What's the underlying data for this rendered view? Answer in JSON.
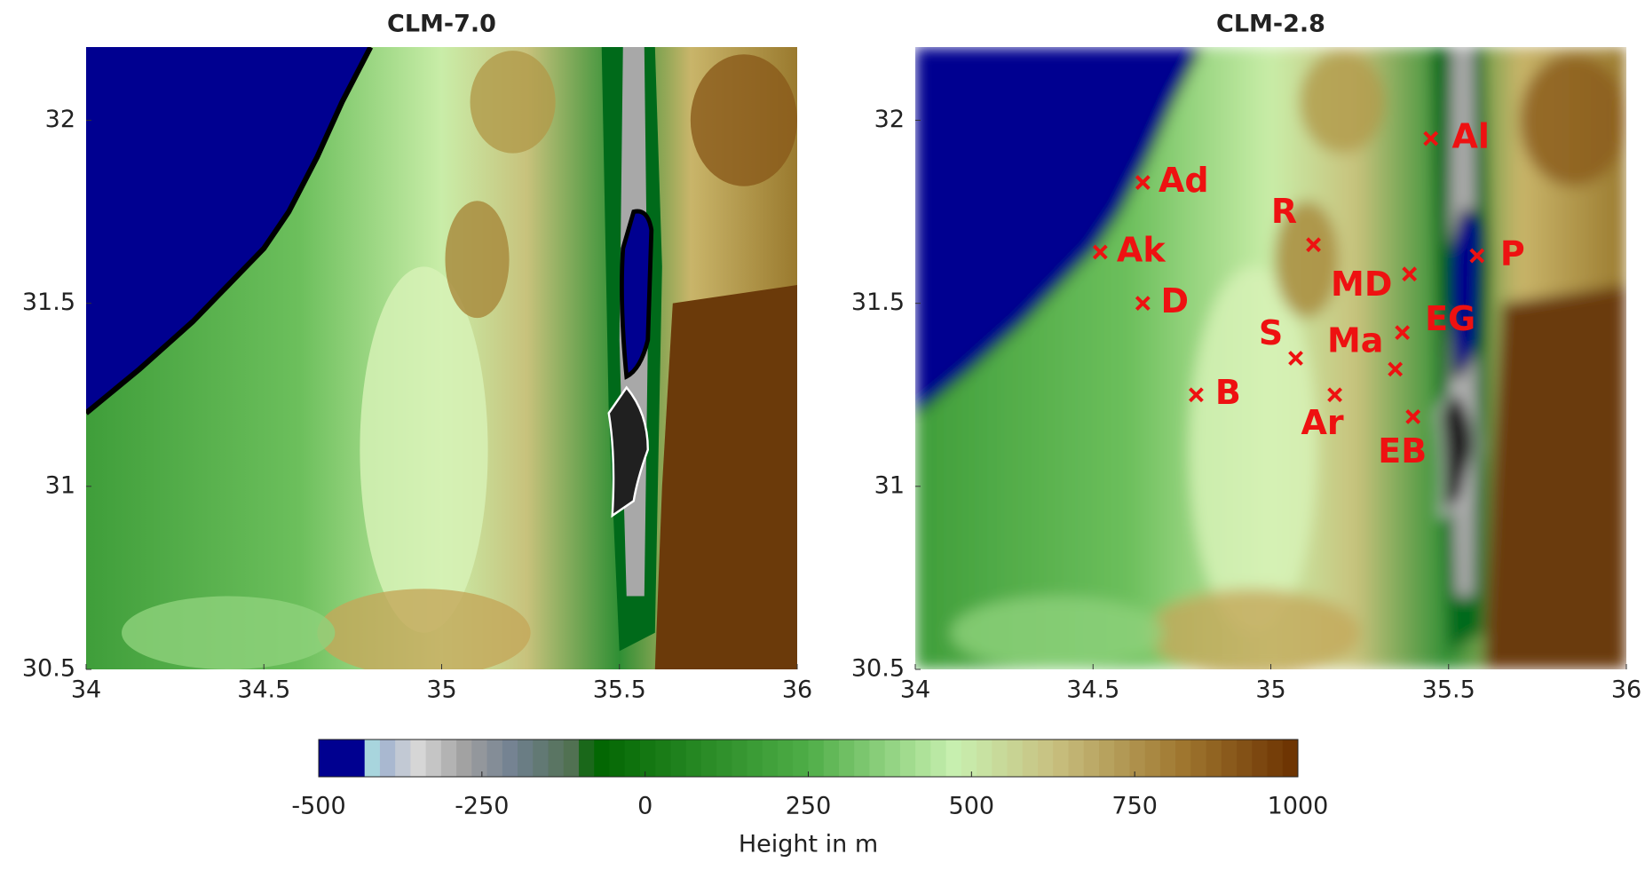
{
  "chart_data": [
    {
      "type": "map",
      "title": "CLM-7.0",
      "xlim": [
        34,
        36
      ],
      "ylim": [
        30.5,
        32.2
      ],
      "xticks": [
        34,
        34.5,
        35,
        35.5,
        36
      ],
      "yticks": [
        30.5,
        31,
        31.5,
        32
      ]
    },
    {
      "type": "map",
      "title": "CLM-2.8",
      "xlim": [
        34,
        36
      ],
      "ylim": [
        30.5,
        32.2
      ],
      "xticks": [
        34,
        34.5,
        35,
        35.5,
        36
      ],
      "yticks": [
        30.5,
        31,
        31.5,
        32
      ],
      "points": {
        "color": "#ee1111",
        "labels": [
          "Al",
          "Ad",
          "R",
          "Ak",
          "P",
          "MD",
          "D",
          "EG",
          "S",
          "Ma",
          "B",
          "Ar",
          "EB"
        ],
        "x": [
          35.45,
          34.64,
          35.12,
          34.52,
          35.58,
          35.39,
          34.64,
          35.37,
          35.07,
          35.35,
          34.79,
          35.18,
          35.4
        ],
        "y": [
          31.95,
          31.83,
          31.66,
          31.64,
          31.63,
          31.58,
          31.5,
          31.42,
          31.35,
          31.32,
          31.25,
          31.25,
          31.19
        ]
      }
    },
    {
      "type": "colorbar",
      "title": "Height in m",
      "xlim": [
        -500,
        1000
      ],
      "xticks": [
        -500,
        -250,
        0,
        250,
        500,
        750,
        1000
      ]
    }
  ]
}
